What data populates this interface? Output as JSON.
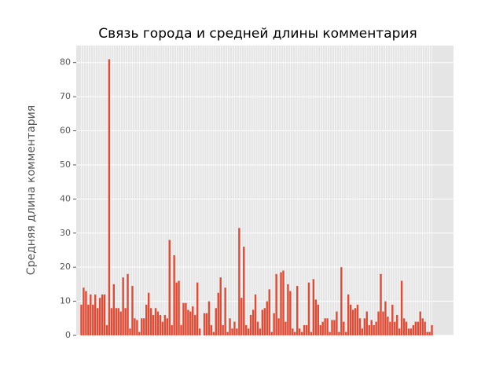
{
  "chart_data": {
    "type": "bar",
    "title": "Связь города и средней длины комментария",
    "y_label": "Средняя длина комментария",
    "values": [
      9,
      14,
      13,
      9,
      12,
      9,
      12,
      8,
      11,
      12,
      12,
      3,
      81,
      8,
      15,
      8,
      8,
      7,
      17,
      8,
      18,
      2,
      14.5,
      5,
      4.5,
      1,
      5,
      5,
      9,
      12.5,
      8,
      6,
      8,
      7,
      6,
      4,
      6,
      5,
      28,
      3,
      23.5,
      15.5,
      16,
      3,
      9.5,
      9.5,
      7.5,
      7,
      8.5,
      6,
      15.5,
      2,
      0,
      6.5,
      6.5,
      10,
      3,
      1,
      8,
      12.5,
      17,
      3,
      14,
      1,
      5,
      2,
      4,
      2,
      31.5,
      11,
      26,
      3,
      2,
      6,
      7.5,
      12,
      4,
      2,
      7.5,
      8,
      10,
      13.5,
      1,
      6.5,
      18,
      5,
      18.5,
      19,
      4,
      15,
      13,
      2,
      1,
      14.5,
      2,
      1,
      3,
      3,
      15.5,
      1,
      16.5,
      10.5,
      9,
      3,
      4,
      5,
      5,
      1,
      4.5,
      4.5,
      7,
      1,
      20,
      4,
      1,
      12,
      9,
      7.5,
      8,
      9,
      5,
      2,
      5,
      7,
      3,
      4.5,
      3,
      4,
      7,
      18,
      7,
      10,
      5.5,
      4,
      9,
      4,
      6,
      2,
      16,
      5,
      4,
      2,
      2,
      3,
      4,
      4,
      7,
      5,
      4,
      1,
      1,
      3
    ],
    "color": "#E24A33",
    "ylim": [
      0,
      85
    ],
    "yticks": [
      0,
      10,
      20,
      30,
      40,
      50,
      60,
      70,
      80
    ],
    "grid": true
  }
}
